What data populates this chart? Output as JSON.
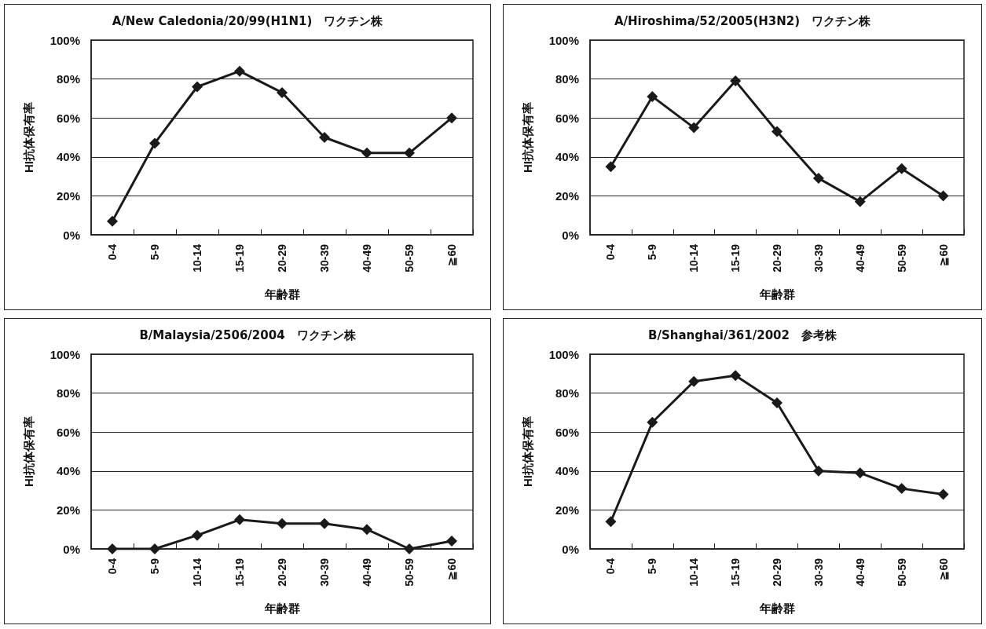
{
  "chart_data": [
    {
      "type": "line",
      "title": "A/New Caledonia/20/99(H1N1)　ワクチン株",
      "xlabel": "年齢群",
      "ylabel": "HI抗体保有率",
      "categories": [
        "0-4",
        "5-9",
        "10-14",
        "15-19",
        "20-29",
        "30-39",
        "40-49",
        "50-59",
        "≧60"
      ],
      "series": [
        {
          "color": "#1a1a1a",
          "values": [
            7,
            47,
            76,
            84,
            73,
            50,
            42,
            42,
            60
          ]
        }
      ],
      "ylim": [
        0,
        100
      ],
      "yticks": [
        {
          "value": 0,
          "label": "0%"
        },
        {
          "value": 20,
          "label": "20%"
        },
        {
          "value": 40,
          "label": "40%"
        },
        {
          "value": 60,
          "label": "60%"
        },
        {
          "value": 80,
          "label": "80%"
        },
        {
          "value": 100,
          "label": "100%"
        }
      ],
      "grid": "y",
      "marker": "diamond",
      "line_style": "solid"
    },
    {
      "type": "line",
      "title": "A/Hiroshima/52/2005(H3N2)　ワクチン株",
      "xlabel": "年齢群",
      "ylabel": "HI抗体保有率",
      "categories": [
        "0-4",
        "5-9",
        "10-14",
        "15-19",
        "20-29",
        "30-39",
        "40-49",
        "50-59",
        "≧60"
      ],
      "series": [
        {
          "color": "#1a1a1a",
          "values": [
            35,
            71,
            55,
            79,
            53,
            29,
            17,
            34,
            20
          ]
        }
      ],
      "ylim": [
        0,
        100
      ],
      "yticks": [
        {
          "value": 0,
          "label": "0%"
        },
        {
          "value": 20,
          "label": "20%"
        },
        {
          "value": 40,
          "label": "40%"
        },
        {
          "value": 60,
          "label": "60%"
        },
        {
          "value": 80,
          "label": "80%"
        },
        {
          "value": 100,
          "label": "100%"
        }
      ],
      "grid": "y",
      "marker": "diamond",
      "line_style": "solid"
    },
    {
      "type": "line",
      "title": "B/Malaysia/2506/2004　ワクチン株",
      "xlabel": "年齢群",
      "ylabel": "HI抗体保有率",
      "categories": [
        "0-4",
        "5-9",
        "10-14",
        "15-19",
        "20-29",
        "30-39",
        "40-49",
        "50-59",
        "≧60"
      ],
      "series": [
        {
          "color": "#1a1a1a",
          "values": [
            0,
            0,
            7,
            15,
            13,
            13,
            10,
            0,
            4
          ]
        }
      ],
      "ylim": [
        0,
        100
      ],
      "yticks": [
        {
          "value": 0,
          "label": "0%"
        },
        {
          "value": 20,
          "label": "20%"
        },
        {
          "value": 40,
          "label": "40%"
        },
        {
          "value": 60,
          "label": "60%"
        },
        {
          "value": 80,
          "label": "80%"
        },
        {
          "value": 100,
          "label": "100%"
        }
      ],
      "grid": "y",
      "marker": "diamond",
      "line_style": "solid"
    },
    {
      "type": "line",
      "title": "B/Shanghai/361/2002　参考株",
      "xlabel": "年齢群",
      "ylabel": "HI抗体保有率",
      "categories": [
        "0-4",
        "5-9",
        "10-14",
        "15-19",
        "20-29",
        "30-39",
        "40-49",
        "50-59",
        "≧60"
      ],
      "series": [
        {
          "color": "#1a1a1a",
          "values": [
            14,
            65,
            86,
            89,
            75,
            40,
            39,
            31,
            28
          ]
        }
      ],
      "ylim": [
        0,
        100
      ],
      "yticks": [
        {
          "value": 0,
          "label": "0%"
        },
        {
          "value": 20,
          "label": "20%"
        },
        {
          "value": 40,
          "label": "40%"
        },
        {
          "value": 60,
          "label": "60%"
        },
        {
          "value": 80,
          "label": "80%"
        },
        {
          "value": 100,
          "label": "100%"
        }
      ],
      "grid": "y",
      "marker": "diamond",
      "line_style": "solid"
    }
  ]
}
